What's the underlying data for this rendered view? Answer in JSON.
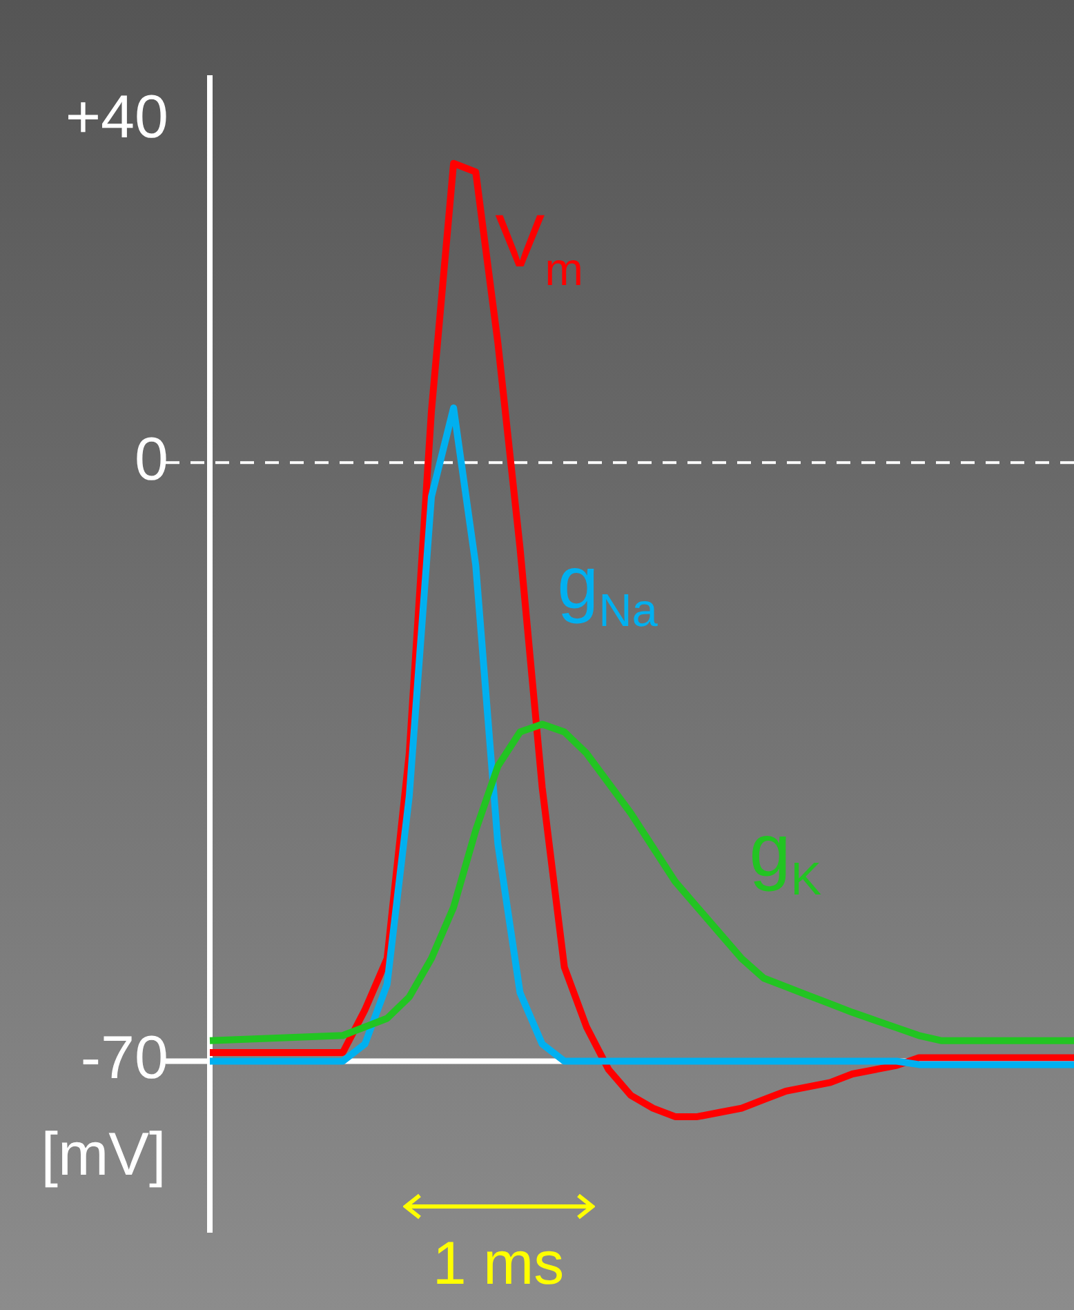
{
  "chart_data": {
    "type": "line",
    "ylabel": "[mV]",
    "ylim": [
      -90,
      45
    ],
    "categories": [
      null,
      null,
      null,
      null,
      null,
      null,
      null,
      null,
      null,
      null,
      null,
      null,
      null,
      null,
      null,
      null,
      null,
      null,
      null,
      null,
      null,
      null,
      null,
      null,
      null,
      null,
      null,
      null,
      null,
      null,
      null,
      null,
      null,
      null,
      null,
      null,
      null,
      null,
      null,
      null
    ],
    "yticks": [
      {
        "value": 40,
        "label": "+40"
      },
      0,
      -70
    ],
    "tick_labels": "y",
    "grid": false,
    "legend": false,
    "marker": "none",
    "series": [
      {
        "name": "V$_{m}$",
        "color": "#ff0000",
        "values": [
          -69,
          -69,
          -69,
          -69,
          -69,
          -69,
          -69,
          -64,
          -58,
          -34,
          6,
          35,
          34,
          14,
          -10,
          -38,
          -59,
          -66,
          -71,
          -74,
          -75.5,
          -76.5,
          -76.5,
          -76,
          -75.5,
          -74.5,
          -73.5,
          -73,
          -72.5,
          -71.5,
          -71,
          -70.5,
          -69.6,
          -69.6,
          -69.6,
          -69.6,
          -69.6,
          -69.6,
          -69.6,
          -69.6
        ]
      },
      {
        "name": "g$_{Na}$",
        "color": "#00b0f0",
        "values": [
          -70,
          -70,
          -70,
          -70,
          -70,
          -70,
          -70,
          -68,
          -61,
          -39,
          -4,
          6.4,
          -12,
          -44.6,
          -62,
          -68,
          -70,
          -70,
          -70,
          -70,
          -70,
          -70,
          -70,
          -70,
          -70,
          -70,
          -70,
          -70,
          -70,
          -70,
          -70,
          -70,
          -70.4,
          -70.4,
          -70.4,
          -70.4,
          -70.4,
          -70.4,
          -70.4,
          -70.4
        ]
      },
      {
        "name": "g$_{K}$",
        "color": "#22c422",
        "values": [
          -67.6,
          -67.5,
          -67.4,
          -67.3,
          -67.2,
          -67.1,
          -67,
          -66,
          -65,
          -62.5,
          -58,
          -52,
          -43,
          -35.5,
          -31.5,
          -30.6,
          -31.5,
          -34,
          -37.5,
          -41,
          -45,
          -49,
          -52,
          -55,
          -58,
          -60.3,
          -61.3,
          -62.3,
          -63.3,
          -64.3,
          -65.2,
          -66.1,
          -67,
          -67.6,
          -67.6,
          -67.6,
          -67.6,
          -67.6,
          -67.6,
          -67.6
        ]
      }
    ],
    "ref_lines": [
      {
        "axis": "y",
        "value": 0,
        "line_style": "dashed",
        "color": "#ffffff"
      },
      {
        "axis": "y",
        "value": -70,
        "line_style": "solid",
        "color": "#ffffff"
      }
    ],
    "annotations": [
      "1 ms"
    ]
  }
}
